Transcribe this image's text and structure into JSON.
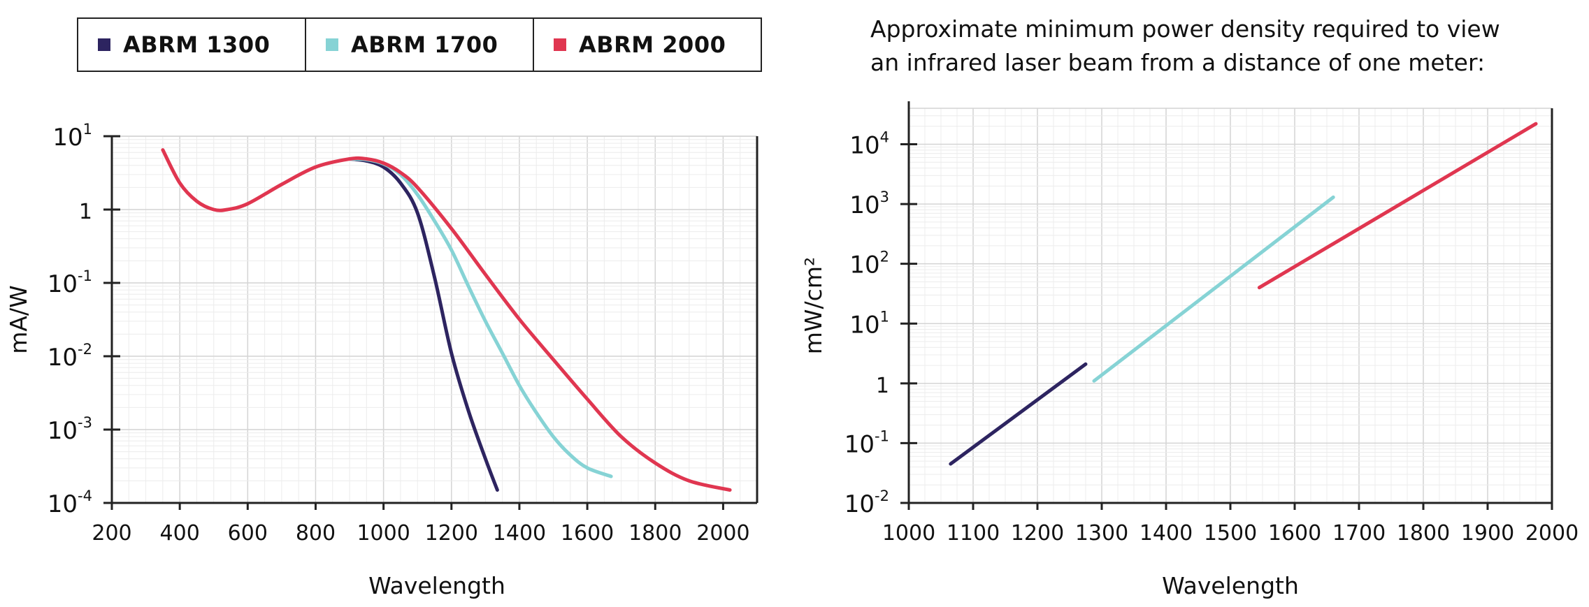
{
  "legend": {
    "items": [
      {
        "label": "ABRM 1300",
        "color": "#2d2460"
      },
      {
        "label": "ABRM 1700",
        "color": "#86d3d5"
      },
      {
        "label": "ABRM 2000",
        "color": "#e03650"
      }
    ]
  },
  "right_title": {
    "line1": "Approximate minimum power density required to view",
    "line2": "an infrared laser beam from a distance of one meter:"
  },
  "chart_data": [
    {
      "type": "line",
      "title": "",
      "xlabel": "Wavelength",
      "ylabel": "mA/W",
      "xlim": [
        200,
        2100
      ],
      "ylim": [
        0.0001,
        10
      ],
      "yscale": "log",
      "grid": true,
      "x_ticks": [
        "200",
        "400",
        "600",
        "800",
        "1000",
        "1200",
        "1400",
        "1600",
        "1800",
        "2000"
      ],
      "y_ticks": [
        {
          "base": "10",
          "exp": "-4"
        },
        {
          "base": "10",
          "exp": "-3"
        },
        {
          "base": "10",
          "exp": "-2"
        },
        {
          "base": "10",
          "exp": "-1"
        },
        {
          "base": "1",
          "exp": ""
        },
        {
          "base": "10",
          "exp": "1"
        }
      ],
      "series": [
        {
          "name": "ABRM 1300",
          "color": "#2d2460",
          "x": [
            900,
            950,
            1000,
            1050,
            1100,
            1150,
            1200,
            1250,
            1300,
            1335
          ],
          "y": [
            4.9,
            4.6,
            3.8,
            2.3,
            0.9,
            0.12,
            0.011,
            0.0018,
            0.0004,
            0.00015
          ]
        },
        {
          "name": "ABRM 1700",
          "color": "#86d3d5",
          "x": [
            900,
            950,
            1000,
            1050,
            1100,
            1150,
            1200,
            1250,
            1300,
            1350,
            1400,
            1450,
            1500,
            1550,
            1600,
            1670
          ],
          "y": [
            4.9,
            4.8,
            4.2,
            3.0,
            1.6,
            0.7,
            0.28,
            0.09,
            0.03,
            0.011,
            0.004,
            0.0017,
            0.0008,
            0.00045,
            0.0003,
            0.00023
          ]
        },
        {
          "name": "ABRM 2000",
          "color": "#e03650",
          "x": [
            350,
            400,
            450,
            500,
            540,
            600,
            700,
            800,
            900,
            950,
            1000,
            1050,
            1100,
            1200,
            1300,
            1400,
            1500,
            1600,
            1700,
            1800,
            1900,
            2020
          ],
          "y": [
            6.5,
            2.3,
            1.3,
            1.0,
            1.0,
            1.2,
            2.2,
            3.8,
            4.9,
            4.9,
            4.3,
            3.2,
            2.0,
            0.55,
            0.13,
            0.032,
            0.009,
            0.0026,
            0.0008,
            0.00035,
            0.0002,
            0.00015
          ]
        }
      ]
    },
    {
      "type": "line",
      "title": "Approximate minimum power density required to view an infrared laser beam from a distance of one meter:",
      "xlabel": "Wavelength",
      "ylabel": "mW/cm²",
      "xlim": [
        1000,
        2000
      ],
      "ylim": [
        0.01,
        40000
      ],
      "yscale": "log",
      "grid": true,
      "x_ticks": [
        "1000",
        "1100",
        "1200",
        "1300",
        "1400",
        "1500",
        "1600",
        "1700",
        "1800",
        "1900",
        "2000"
      ],
      "y_ticks": [
        {
          "base": "10",
          "exp": "-2"
        },
        {
          "base": "10",
          "exp": "-1"
        },
        {
          "base": "1",
          "exp": ""
        },
        {
          "base": "10",
          "exp": "1"
        },
        {
          "base": "10",
          "exp": "2"
        },
        {
          "base": "10",
          "exp": "3"
        },
        {
          "base": "10",
          "exp": "4"
        }
      ],
      "series": [
        {
          "name": "ABRM 1300",
          "color": "#2d2460",
          "x": [
            1065,
            1275
          ],
          "y": [
            0.045,
            2.1
          ]
        },
        {
          "name": "ABRM 1700",
          "color": "#86d3d5",
          "x": [
            1288,
            1660
          ],
          "y": [
            1.1,
            1300
          ]
        },
        {
          "name": "ABRM 2000",
          "color": "#e03650",
          "x": [
            1545,
            1975
          ],
          "y": [
            40,
            22000
          ]
        }
      ]
    }
  ]
}
